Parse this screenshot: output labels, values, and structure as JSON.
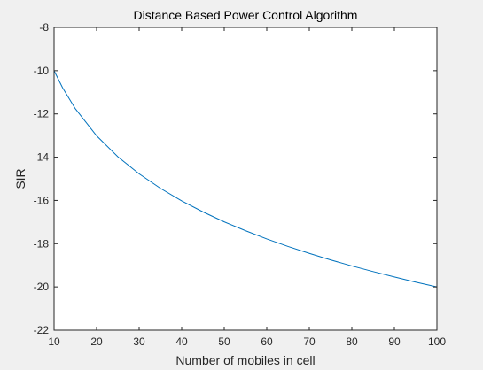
{
  "chart_data": {
    "type": "line",
    "title": "Distance Based Power Control Algorithm",
    "xlabel": "Number of mobiles in cell",
    "ylabel": "SIR",
    "xlim": [
      10,
      100
    ],
    "ylim": [
      -22,
      -8
    ],
    "xticks": [
      10,
      20,
      30,
      40,
      50,
      60,
      70,
      80,
      90,
      100
    ],
    "yticks": [
      -8,
      -10,
      -12,
      -14,
      -16,
      -18,
      -20,
      -22
    ],
    "grid": false,
    "series": [
      {
        "color": "#0072bd",
        "x": [
          10,
          12,
          15,
          20,
          25,
          30,
          35,
          40,
          45,
          50,
          55,
          60,
          65,
          70,
          75,
          80,
          85,
          90,
          95,
          100
        ],
        "y": [
          -10.0,
          -10.79,
          -11.76,
          -13.01,
          -13.98,
          -14.77,
          -15.44,
          -16.02,
          -16.53,
          -16.99,
          -17.4,
          -17.78,
          -18.13,
          -18.45,
          -18.75,
          -19.03,
          -19.29,
          -19.54,
          -19.78,
          -20.0
        ]
      }
    ]
  }
}
